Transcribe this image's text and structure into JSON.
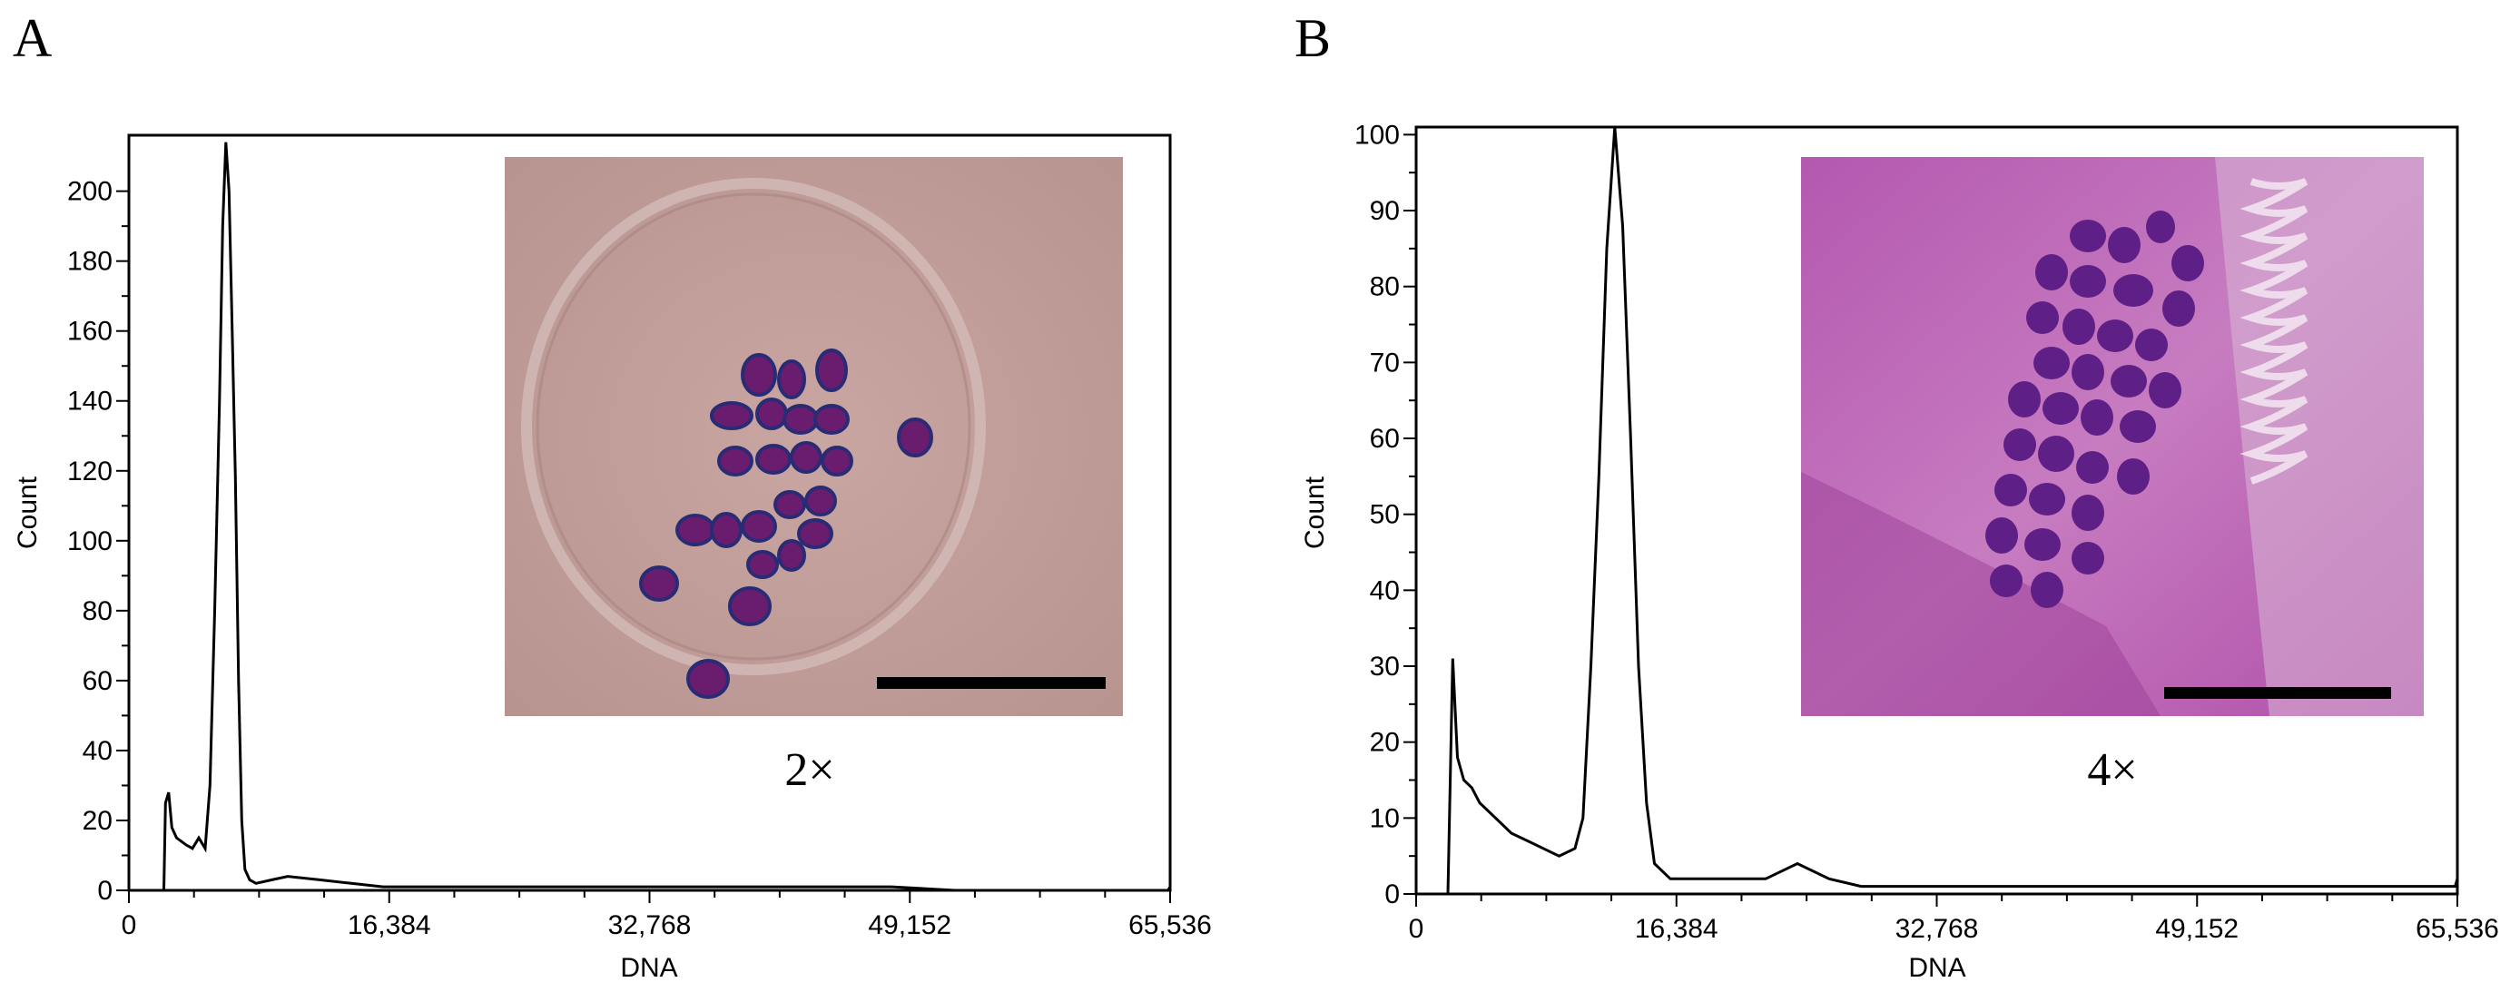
{
  "chart_data": [
    {
      "type": "line",
      "panel": "A",
      "xlabel": "DNA",
      "ylabel": "Count",
      "xlim": [
        0,
        65536
      ],
      "ylim": [
        0,
        216
      ],
      "xticks": [
        0,
        16384,
        32768,
        49152,
        65536
      ],
      "xtick_labels": [
        "0",
        "16,384",
        "32,768",
        "49,152",
        "65,536"
      ],
      "yticks": [
        0,
        20,
        40,
        60,
        80,
        100,
        120,
        140,
        160,
        180,
        200
      ],
      "ytick_labels": [
        "0",
        "20",
        "40",
        "60",
        "80",
        "100",
        "120",
        "140",
        "160",
        "180",
        "200"
      ],
      "grid": false,
      "series": [
        {
          "x": [
            0,
            2200,
            2300,
            2500,
            2700,
            3000,
            3300,
            3600,
            4000,
            4400,
            4800,
            5100,
            5400,
            5700,
            5900,
            6100,
            6300,
            6500,
            6700,
            6900,
            7100,
            7300,
            7600,
            8000,
            9000,
            10000,
            12000,
            14000,
            16000,
            18000,
            20000,
            24000,
            28000,
            32000,
            36000,
            40000,
            44000,
            48000,
            52000,
            56000,
            60000,
            64000,
            65400,
            65536
          ],
          "y": [
            0,
            0,
            25,
            28,
            18,
            15,
            14,
            13,
            12,
            15,
            12,
            30,
            80,
            140,
            190,
            214,
            200,
            160,
            118,
            60,
            20,
            6,
            3,
            2,
            3,
            4,
            3,
            2,
            1,
            1,
            1,
            1,
            1,
            1,
            1,
            1,
            1,
            1,
            0,
            0,
            0,
            0,
            0,
            1
          ]
        }
      ],
      "inset": {
        "magnification": "2×",
        "background": "#c09a96",
        "stain": "#6a1d6e"
      }
    },
    {
      "type": "line",
      "panel": "B",
      "xlabel": "DNA",
      "ylabel": "Count",
      "xlim": [
        0,
        65536
      ],
      "ylim": [
        0,
        101
      ],
      "xticks": [
        0,
        16384,
        32768,
        49152,
        65536
      ],
      "xtick_labels": [
        "0",
        "16,384",
        "32,768",
        "49,152",
        "65,536"
      ],
      "yticks": [
        0,
        10,
        20,
        30,
        40,
        50,
        60,
        70,
        80,
        90,
        100
      ],
      "ytick_labels": [
        "0",
        "10",
        "20",
        "30",
        "40",
        "50",
        "60",
        "70",
        "80",
        "90",
        "100"
      ],
      "grid": false,
      "series": [
        {
          "x": [
            0,
            2000,
            2300,
            2600,
            3000,
            3500,
            4000,
            5000,
            6000,
            7000,
            8000,
            9000,
            10000,
            10500,
            11000,
            11500,
            12000,
            12500,
            13000,
            13500,
            14000,
            14500,
            15000,
            16000,
            18000,
            20000,
            22000,
            24000,
            26000,
            28000,
            30000,
            34000,
            38000,
            42000,
            46000,
            50000,
            54000,
            58000,
            62000,
            65400,
            65536
          ],
          "y": [
            0,
            0,
            31,
            18,
            15,
            14,
            12,
            10,
            8,
            7,
            6,
            5,
            6,
            10,
            30,
            55,
            85,
            101,
            88,
            60,
            30,
            12,
            4,
            2,
            2,
            2,
            2,
            4,
            2,
            1,
            1,
            1,
            1,
            1,
            1,
            1,
            1,
            1,
            1,
            1,
            2
          ]
        }
      ],
      "inset": {
        "magnification": "4×",
        "background": "#c05bb5",
        "stain": "#5e1f86"
      }
    }
  ]
}
